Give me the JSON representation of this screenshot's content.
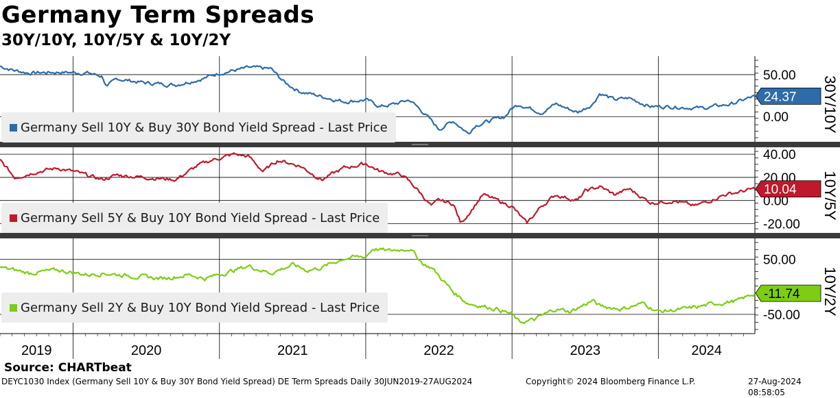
{
  "title": "Germany Term Spreads",
  "subtitle": "30Y/10Y, 10Y/5Y & 10Y/2Y",
  "source": "Source: CHARTbeat",
  "footer": {
    "left": "DEYC1030 Index (Germany Sell 10Y & Buy 30Y Bond Yield Spread) DE Term Spreads  Daily 30JUN2019-27AUG2024",
    "middle": "Copyright© 2024 Bloomberg Finance L.P.",
    "right": "27-Aug-2024 08:58:05"
  },
  "colors": {
    "blue": "#2e6ba8",
    "red": "#c0182c",
    "green": "#7ccd14",
    "grid": "#000000"
  },
  "chart_data": {
    "type": "line",
    "x_start": 2019.5,
    "x_end": 2024.66,
    "x_tick_labels": [
      "2019",
      "2020",
      "2021",
      "2022",
      "2023",
      "2024"
    ],
    "panels": [
      {
        "name": "30Y/10Y",
        "axis_label": "30Y/10Y",
        "legend": "Germany Sell 10Y & Buy 30Y Bond Yield Spread - Last Price",
        "color": "#2e6ba8",
        "last_value": "24.37",
        "last_numeric": 24.37,
        "ylim": [
          -30,
          72
        ],
        "yticks": [
          50,
          0
        ],
        "ytick_labels": [
          "50.00",
          "0.00"
        ],
        "x": [
          2019.5,
          2019.6,
          2019.7,
          2019.9,
          2020.1,
          2020.2,
          2020.23,
          2020.3,
          2020.5,
          2020.7,
          2020.9,
          2021.0,
          2021.2,
          2021.35,
          2021.45,
          2021.55,
          2021.7,
          2021.85,
          2022.0,
          2022.1,
          2022.2,
          2022.3,
          2022.4,
          2022.5,
          2022.6,
          2022.7,
          2022.75,
          2022.85,
          2022.95,
          2023.0,
          2023.05,
          2023.2,
          2023.3,
          2023.45,
          2023.5,
          2023.55,
          2023.6,
          2023.7,
          2023.8,
          2023.95,
          2024.1,
          2024.3,
          2024.5,
          2024.66
        ],
        "values": [
          60,
          55,
          52,
          53,
          52,
          48,
          35,
          45,
          40,
          38,
          46,
          52,
          58,
          57,
          40,
          30,
          24,
          18,
          20,
          12,
          15,
          20,
          4,
          -15,
          -5,
          -20,
          -10,
          -5,
          0,
          10,
          15,
          5,
          15,
          5,
          10,
          15,
          28,
          20,
          22,
          12,
          12,
          10,
          15,
          24.37
        ]
      },
      {
        "name": "10Y/5Y",
        "axis_label": "10Y/5Y",
        "legend": "Germany Sell 5Y & Buy 10Y Bond Yield Spread - Last Price",
        "color": "#c0182c",
        "last_value": "10.04",
        "last_numeric": 10.04,
        "ylim": [
          -28,
          46
        ],
        "yticks": [
          40,
          20,
          0,
          -20
        ],
        "ytick_labels": [
          "40.00",
          "20.00",
          "0.00",
          "-20.00"
        ],
        "x": [
          2019.5,
          2019.6,
          2019.75,
          2019.9,
          2020.0,
          2020.2,
          2020.3,
          2020.5,
          2020.7,
          2020.75,
          2020.85,
          2020.95,
          2021.1,
          2021.2,
          2021.3,
          2021.4,
          2021.55,
          2021.7,
          2021.85,
          2022.0,
          2022.1,
          2022.25,
          2022.35,
          2022.45,
          2022.5,
          2022.6,
          2022.65,
          2022.8,
          2022.9,
          2023.0,
          2023.1,
          2023.2,
          2023.3,
          2023.45,
          2023.5,
          2023.6,
          2023.7,
          2023.8,
          2023.95,
          2024.1,
          2024.25,
          2024.45,
          2024.66
        ],
        "values": [
          35,
          20,
          25,
          28,
          25,
          18,
          22,
          20,
          18,
          22,
          30,
          35,
          40,
          38,
          25,
          35,
          30,
          18,
          28,
          32,
          25,
          22,
          10,
          -5,
          0,
          -3,
          -20,
          5,
          0,
          -5,
          -20,
          -5,
          5,
          0,
          8,
          12,
          5,
          10,
          -2,
          0,
          -5,
          5,
          10.04
        ]
      },
      {
        "name": "10Y/2Y",
        "axis_label": "10Y/2Y",
        "legend": "Germany Sell 2Y & Buy 10Y Bond Yield Spread - Last Price",
        "color": "#7ccd14",
        "last_value": "-11.74",
        "last_numeric": -11.74,
        "ylim": [
          -85,
          88
        ],
        "yticks": [
          50,
          -50
        ],
        "ytick_labels": [
          "50.00",
          "-50.00"
        ],
        "x": [
          2019.5,
          2019.7,
          2019.9,
          2020.1,
          2020.2,
          2020.4,
          2020.6,
          2020.8,
          2020.9,
          2021.1,
          2021.2,
          2021.35,
          2021.5,
          2021.6,
          2021.7,
          2021.85,
          2022.0,
          2022.05,
          2022.15,
          2022.3,
          2022.4,
          2022.45,
          2022.5,
          2022.6,
          2022.7,
          2022.9,
          2023.0,
          2023.05,
          2023.15,
          2023.3,
          2023.4,
          2023.55,
          2023.6,
          2023.75,
          2023.9,
          2024.0,
          2024.2,
          2024.4,
          2024.55,
          2024.66
        ],
        "values": [
          35,
          25,
          30,
          22,
          25,
          20,
          15,
          22,
          15,
          30,
          38,
          25,
          40,
          30,
          35,
          52,
          55,
          70,
          65,
          70,
          40,
          35,
          20,
          -10,
          -30,
          -40,
          -50,
          -65,
          -60,
          -40,
          -45,
          -25,
          -35,
          -40,
          -30,
          -45,
          -40,
          -30,
          -25,
          -11.74
        ]
      }
    ]
  }
}
